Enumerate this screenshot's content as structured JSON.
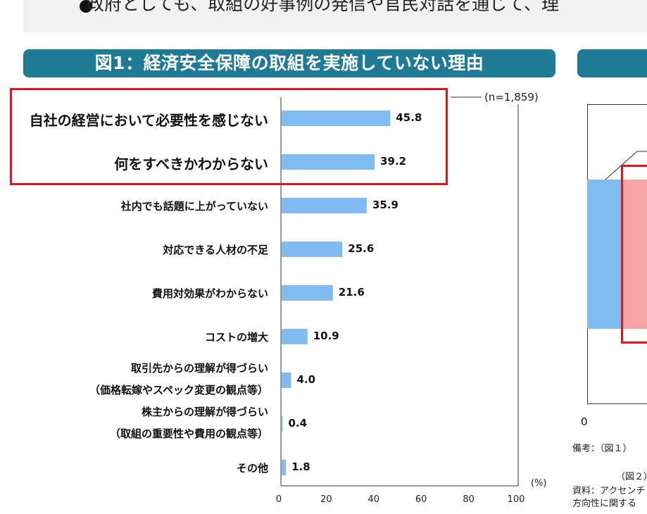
{
  "top_text": "政府としても、取組の好事例の発信や官民対話を通じて、理",
  "figure1_title": "図1：経済安全保障の取組を実施していない理由",
  "chart_data": {
    "type": "bar",
    "orientation": "horizontal",
    "title": "図1：経済安全保障の取組を実施していない理由",
    "sample_size": "(n=1,859)",
    "unit": "(%)",
    "xlim": [
      0,
      100
    ],
    "xticks": [
      "0",
      "20",
      "40",
      "60",
      "80",
      "100"
    ],
    "categories": [
      {
        "lines": [
          "自社の経営において必要性を感じない"
        ],
        "value": 45.8,
        "label": "45.8"
      },
      {
        "lines": [
          "何をすべきかわからない"
        ],
        "value": 39.2,
        "label": "39.2"
      },
      {
        "lines": [
          "社内でも話題に上がっていない"
        ],
        "value": 35.9,
        "label": "35.9"
      },
      {
        "lines": [
          "対応できる人材の不足"
        ],
        "value": 25.6,
        "label": "25.6"
      },
      {
        "lines": [
          "費用対効果がわからない"
        ],
        "value": 21.6,
        "label": "21.6"
      },
      {
        "lines": [
          "コストの増大"
        ],
        "value": 10.9,
        "label": "10.9"
      },
      {
        "lines": [
          "取引先からの理解が得づらい",
          "（価格転嫁やスペック変更の観点等）"
        ],
        "value": 4.0,
        "label": "4.0"
      },
      {
        "lines": [
          "株主からの理解が得づらい",
          "（取組の重要性や費用の観点等）"
        ],
        "value": 0.4,
        "label": "0.4"
      },
      {
        "lines": [
          "その他"
        ],
        "value": 1.8,
        "label": "1.8"
      }
    ],
    "highlighted_categories": [
      0,
      1
    ],
    "bar_color": "#80bcf2",
    "highlight_color": "#e0161e",
    "grid": false
  },
  "figure2": {
    "zero_label": "0",
    "notes": [
      "備考：（図１）",
      "（図２）",
      "資料：アクセンチ",
      "方向性に関する"
    ]
  }
}
